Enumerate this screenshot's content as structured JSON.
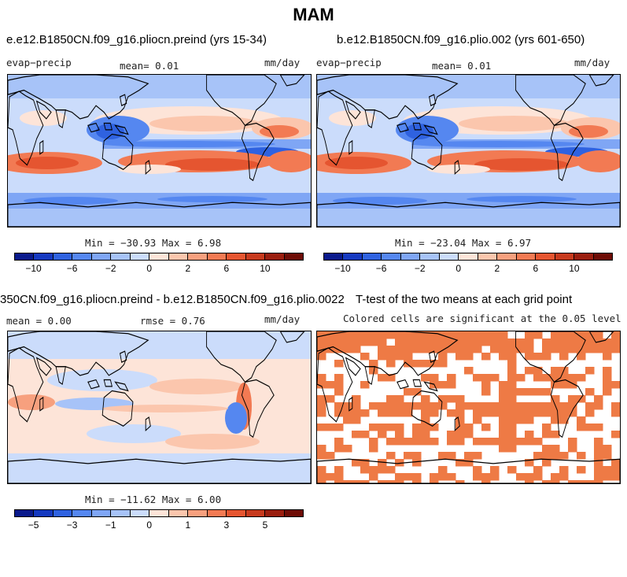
{
  "chart_data": [
    {
      "type": "heatmap",
      "title": "e.e12.B1850CN.f09_g16.pliocn.preind (yrs 15-34)",
      "left_label": "evap−precip",
      "center_label": "mean=    0.01",
      "right_label": "mm/day",
      "minmax": "Min = −30.93 Max =    6.98",
      "colorbar_ticks": [
        "−10",
        "−6",
        "−2",
        "0",
        "2",
        "6",
        "10"
      ],
      "colorbar_colors": [
        "#0a1a8c",
        "#1539c0",
        "#2f62e0",
        "#5587f0",
        "#7fa6f5",
        "#a7c3f8",
        "#cbdcfb",
        "#fde4d8",
        "#fbc6ad",
        "#f7a07e",
        "#f27a53",
        "#e55530",
        "#c73a1e",
        "#9a1e0f",
        "#6e0c06"
      ],
      "projection": "Cylindrical equidistant, 0–360 longitude"
    },
    {
      "type": "heatmap",
      "title": "b.e12.B1850CN.f09_g16.plio.002 (yrs 601-650)",
      "left_label": "evap−precip",
      "center_label": "mean=    0.01",
      "right_label": "mm/day",
      "minmax": "Min = −23.04 Max =    6.97",
      "colorbar_ticks": [
        "−10",
        "−6",
        "−2",
        "0",
        "2",
        "6",
        "10"
      ],
      "colorbar_colors": [
        "#0a1a8c",
        "#1539c0",
        "#2f62e0",
        "#5587f0",
        "#7fa6f5",
        "#a7c3f8",
        "#cbdcfb",
        "#fde4d8",
        "#fbc6ad",
        "#f7a07e",
        "#f27a53",
        "#e55530",
        "#c73a1e",
        "#9a1e0f",
        "#6e0c06"
      ],
      "projection": "Cylindrical equidistant, 0–360 longitude"
    },
    {
      "type": "heatmap",
      "title": "350CN.f09_g16.pliocn.preind - b.e12.B1850CN.f09_g16.plio.002",
      "left_label": "mean =    0.00",
      "center_label": "rmse =    0.76",
      "right_label": "mm/day",
      "minmax": "Min = −11.62 Max =    6.00",
      "colorbar_ticks": [
        "−5",
        "−3",
        "−1",
        "0",
        "1",
        "3",
        "5"
      ],
      "colorbar_colors": [
        "#0a1a8c",
        "#1539c0",
        "#2f62e0",
        "#5587f0",
        "#7fa6f5",
        "#a7c3f8",
        "#cbdcfb",
        "#fde4d8",
        "#fbc6ad",
        "#f7a07e",
        "#f27a53",
        "#e55530",
        "#c73a1e",
        "#9a1e0f",
        "#6e0c06"
      ],
      "projection": "Cylindrical equidistant, 0–360 longitude"
    },
    {
      "type": "heatmap",
      "title": "T-test of the two means at each grid point",
      "subtitle": "Colored cells are significant at the 0.05 level",
      "significance_color": "#ee7a45",
      "projection": "Cylindrical equidistant, 0–360 longitude"
    }
  ],
  "page": {
    "title": "MAM",
    "panel4_title_overlap": "T",
    "diff_title_tail": "2"
  }
}
